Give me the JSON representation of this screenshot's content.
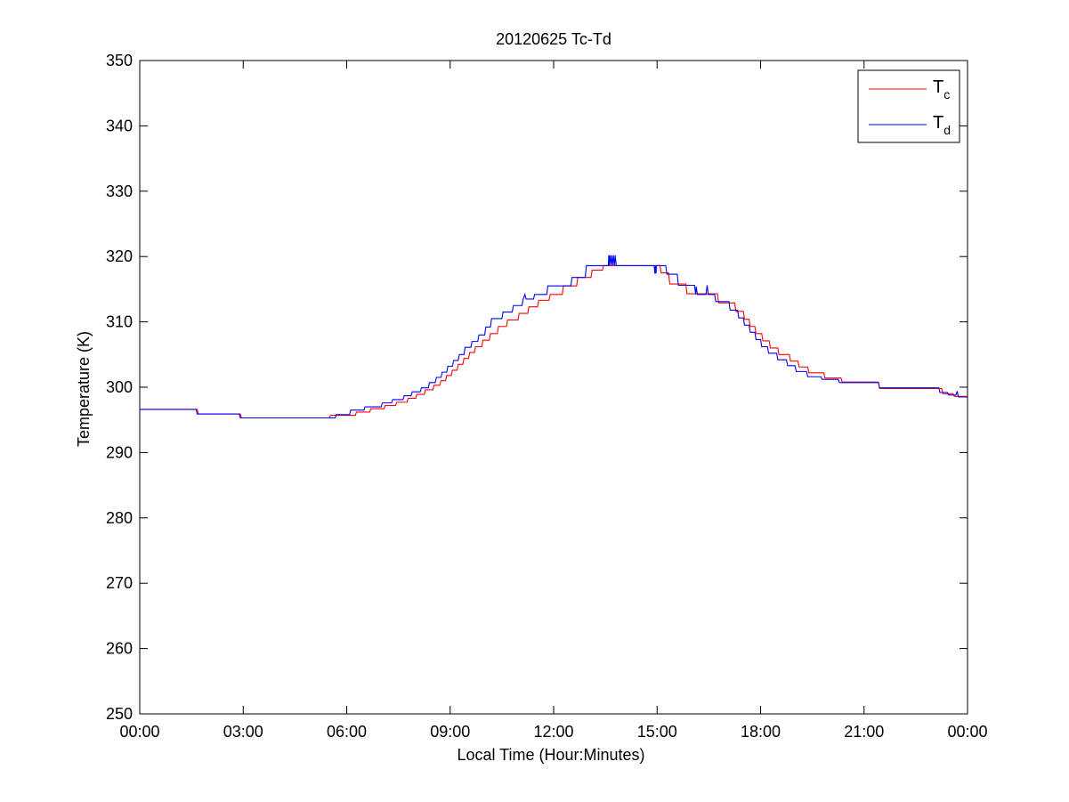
{
  "chart_data": {
    "type": "line",
    "title": "20120625 Tc-Td",
    "xlabel": "Local Time (Hour:Minutes)",
    "ylabel": "Temperature (K)",
    "xlim": [
      "00:00",
      "24:00"
    ],
    "ylim": [
      250,
      350
    ],
    "x_ticks": [
      "00:00",
      "03:00",
      "06:00",
      "09:00",
      "12:00",
      "15:00",
      "18:00",
      "21:00",
      "00:00"
    ],
    "y_ticks": [
      250,
      260,
      270,
      280,
      290,
      300,
      310,
      320,
      330,
      340,
      350
    ],
    "grid": false,
    "legend_position": "top-right",
    "series": [
      {
        "name": "T_c",
        "legend_main": "T",
        "legend_sub": "c",
        "color": "#ff0000",
        "points": [
          [
            "00:00",
            296.6
          ],
          [
            "01:40",
            296.6
          ],
          [
            "01:42",
            295.9
          ],
          [
            "02:55",
            295.9
          ],
          [
            "02:57",
            295.3
          ],
          [
            "05:30",
            295.3
          ],
          [
            "05:32",
            295.7
          ],
          [
            "06:15",
            295.7
          ],
          [
            "06:17",
            296.2
          ],
          [
            "06:40",
            296.2
          ],
          [
            "06:42",
            296.7
          ],
          [
            "07:05",
            296.7
          ],
          [
            "07:07",
            297.2
          ],
          [
            "07:25",
            297.2
          ],
          [
            "07:27",
            297.7
          ],
          [
            "07:45",
            297.7
          ],
          [
            "07:47",
            298.3
          ],
          [
            "08:00",
            298.3
          ],
          [
            "08:02",
            298.9
          ],
          [
            "08:15",
            298.9
          ],
          [
            "08:17",
            299.6
          ],
          [
            "08:30",
            299.6
          ],
          [
            "08:32",
            300.3
          ],
          [
            "08:42",
            300.3
          ],
          [
            "08:44",
            301.0
          ],
          [
            "08:52",
            301.0
          ],
          [
            "08:54",
            301.8
          ],
          [
            "09:02",
            301.8
          ],
          [
            "09:04",
            302.6
          ],
          [
            "09:12",
            302.6
          ],
          [
            "09:14",
            303.5
          ],
          [
            "09:22",
            303.5
          ],
          [
            "09:24",
            304.4
          ],
          [
            "09:32",
            304.4
          ],
          [
            "09:34",
            305.3
          ],
          [
            "09:42",
            305.3
          ],
          [
            "09:44",
            306.2
          ],
          [
            "09:55",
            306.2
          ],
          [
            "09:57",
            307.2
          ],
          [
            "10:08",
            307.2
          ],
          [
            "10:10",
            308.2
          ],
          [
            "10:22",
            308.2
          ],
          [
            "10:24",
            309.3
          ],
          [
            "10:38",
            309.3
          ],
          [
            "10:40",
            310.3
          ],
          [
            "10:58",
            310.3
          ],
          [
            "11:00",
            311.3
          ],
          [
            "11:15",
            311.3
          ],
          [
            "11:17",
            312.3
          ],
          [
            "11:32",
            312.3
          ],
          [
            "11:34",
            313.3
          ],
          [
            "11:52",
            313.3
          ],
          [
            "11:54",
            314.2
          ],
          [
            "12:15",
            314.2
          ],
          [
            "12:17",
            315.5
          ],
          [
            "12:40",
            315.5
          ],
          [
            "12:42",
            316.8
          ],
          [
            "13:05",
            316.8
          ],
          [
            "13:07",
            317.9
          ],
          [
            "13:25",
            317.9
          ],
          [
            "13:27",
            318.6
          ],
          [
            "15:05",
            318.6
          ],
          [
            "15:07",
            317.5
          ],
          [
            "15:20",
            317.5
          ],
          [
            "15:22",
            315.8
          ],
          [
            "15:50",
            315.8
          ],
          [
            "15:52",
            314.3
          ],
          [
            "16:45",
            314.3
          ],
          [
            "16:47",
            312.9
          ],
          [
            "17:15",
            312.9
          ],
          [
            "17:17",
            311.6
          ],
          [
            "17:30",
            311.6
          ],
          [
            "17:32",
            310.4
          ],
          [
            "17:40",
            310.4
          ],
          [
            "17:42",
            309.3
          ],
          [
            "17:50",
            309.3
          ],
          [
            "17:52",
            308.2
          ],
          [
            "18:02",
            308.2
          ],
          [
            "18:04",
            307.1
          ],
          [
            "18:15",
            307.1
          ],
          [
            "18:17",
            306.0
          ],
          [
            "18:30",
            306.0
          ],
          [
            "18:32",
            305.0
          ],
          [
            "18:50",
            305.0
          ],
          [
            "18:52",
            304.0
          ],
          [
            "19:05",
            304.0
          ],
          [
            "19:07",
            303.1
          ],
          [
            "19:22",
            303.1
          ],
          [
            "19:24",
            302.2
          ],
          [
            "19:50",
            302.2
          ],
          [
            "19:52",
            301.4
          ],
          [
            "20:20",
            301.4
          ],
          [
            "20:22",
            300.8
          ],
          [
            "21:25",
            300.8
          ],
          [
            "21:27",
            299.8
          ],
          [
            "23:15",
            299.8
          ],
          [
            "23:17",
            299.0
          ],
          [
            "23:35",
            299.0
          ],
          [
            "23:37",
            298.6
          ],
          [
            "24:00",
            298.6
          ]
        ]
      },
      {
        "name": "T_d",
        "legend_main": "T",
        "legend_sub": "d",
        "color": "#0000ff",
        "points": [
          [
            "00:00",
            296.6
          ],
          [
            "01:38",
            296.6
          ],
          [
            "01:40",
            295.9
          ],
          [
            "02:53",
            295.9
          ],
          [
            "02:55",
            295.3
          ],
          [
            "05:40",
            295.3
          ],
          [
            "05:42",
            295.8
          ],
          [
            "06:05",
            295.8
          ],
          [
            "06:07",
            296.5
          ],
          [
            "06:30",
            296.5
          ],
          [
            "06:32",
            297.0
          ],
          [
            "07:00",
            297.0
          ],
          [
            "07:02",
            297.6
          ],
          [
            "07:18",
            297.6
          ],
          [
            "07:20",
            298.1
          ],
          [
            "07:38",
            298.1
          ],
          [
            "07:40",
            298.7
          ],
          [
            "07:52",
            298.7
          ],
          [
            "07:54",
            299.3
          ],
          [
            "08:08",
            299.3
          ],
          [
            "08:10",
            299.9
          ],
          [
            "08:22",
            299.9
          ],
          [
            "08:24",
            300.7
          ],
          [
            "08:34",
            300.7
          ],
          [
            "08:36",
            301.5
          ],
          [
            "08:44",
            301.5
          ],
          [
            "08:46",
            302.3
          ],
          [
            "08:54",
            302.3
          ],
          [
            "08:56",
            303.2
          ],
          [
            "09:04",
            303.2
          ],
          [
            "09:06",
            304.1
          ],
          [
            "09:14",
            304.1
          ],
          [
            "09:16",
            305.0
          ],
          [
            "09:24",
            305.0
          ],
          [
            "09:26",
            306.1
          ],
          [
            "09:36",
            306.1
          ],
          [
            "09:38",
            307.0
          ],
          [
            "09:48",
            307.0
          ],
          [
            "09:50",
            308.0
          ],
          [
            "10:00",
            308.0
          ],
          [
            "10:02",
            309.2
          ],
          [
            "10:10",
            309.2
          ],
          [
            "10:12",
            310.5
          ],
          [
            "10:30",
            310.5
          ],
          [
            "10:32",
            311.5
          ],
          [
            "10:48",
            311.5
          ],
          [
            "10:50",
            312.5
          ],
          [
            "11:05",
            312.5
          ],
          [
            "11:07",
            313.5
          ],
          [
            "11:10",
            314.2
          ],
          [
            "11:12",
            313.5
          ],
          [
            "11:25",
            313.5
          ],
          [
            "11:27",
            314.2
          ],
          [
            "11:48",
            314.2
          ],
          [
            "11:50",
            315.5
          ],
          [
            "12:30",
            315.5
          ],
          [
            "12:32",
            316.8
          ],
          [
            "12:55",
            316.8
          ],
          [
            "12:57",
            318.6
          ],
          [
            "13:35",
            318.6
          ],
          [
            "13:36",
            320.2
          ],
          [
            "13:37",
            318.6
          ],
          [
            "13:38",
            320.2
          ],
          [
            "13:40",
            318.6
          ],
          [
            "13:41",
            320.2
          ],
          [
            "13:43",
            318.6
          ],
          [
            "13:44",
            320.2
          ],
          [
            "13:46",
            318.6
          ],
          [
            "13:47",
            320.2
          ],
          [
            "13:49",
            318.6
          ],
          [
            "14:55",
            318.6
          ],
          [
            "14:56",
            317.4
          ],
          [
            "14:57",
            318.6
          ],
          [
            "14:58",
            317.4
          ],
          [
            "14:59",
            318.6
          ],
          [
            "15:15",
            318.6
          ],
          [
            "15:17",
            317.3
          ],
          [
            "15:35",
            317.3
          ],
          [
            "15:37",
            315.6
          ],
          [
            "16:05",
            315.6
          ],
          [
            "16:07",
            314.2
          ],
          [
            "16:08",
            315.4
          ],
          [
            "16:10",
            314.2
          ],
          [
            "16:25",
            314.2
          ],
          [
            "16:27",
            315.6
          ],
          [
            "16:29",
            314.2
          ],
          [
            "16:40",
            314.2
          ],
          [
            "16:42",
            313.1
          ],
          [
            "17:05",
            313.1
          ],
          [
            "17:07",
            311.8
          ],
          [
            "17:20",
            311.8
          ],
          [
            "17:22",
            310.6
          ],
          [
            "17:30",
            310.6
          ],
          [
            "17:32",
            309.5
          ],
          [
            "17:40",
            309.5
          ],
          [
            "17:42",
            308.4
          ],
          [
            "17:50",
            308.4
          ],
          [
            "17:52",
            307.3
          ],
          [
            "18:00",
            307.3
          ],
          [
            "18:02",
            306.2
          ],
          [
            "18:12",
            306.2
          ],
          [
            "18:14",
            305.2
          ],
          [
            "18:28",
            305.2
          ],
          [
            "18:30",
            304.2
          ],
          [
            "18:45",
            304.2
          ],
          [
            "18:47",
            303.3
          ],
          [
            "19:00",
            303.3
          ],
          [
            "19:02",
            302.4
          ],
          [
            "19:20",
            302.4
          ],
          [
            "19:22",
            301.6
          ],
          [
            "19:45",
            301.6
          ],
          [
            "19:47",
            301.2
          ],
          [
            "20:15",
            301.2
          ],
          [
            "20:17",
            300.7
          ],
          [
            "21:25",
            300.7
          ],
          [
            "21:27",
            299.9
          ],
          [
            "23:10",
            299.9
          ],
          [
            "23:12",
            299.2
          ],
          [
            "23:25",
            299.2
          ],
          [
            "23:27",
            298.8
          ],
          [
            "23:40",
            298.8
          ],
          [
            "23:42",
            299.4
          ],
          [
            "23:44",
            298.5
          ],
          [
            "24:00",
            298.5
          ]
        ]
      }
    ]
  }
}
